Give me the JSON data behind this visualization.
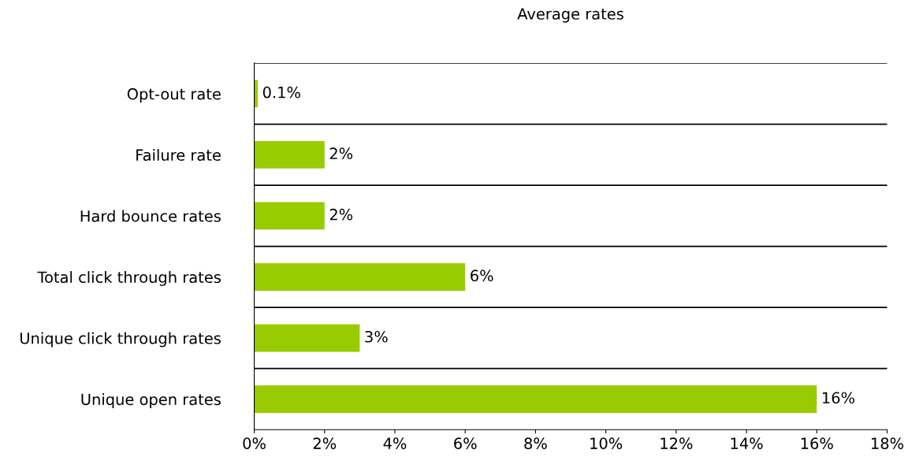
{
  "chart_data": {
    "type": "bar",
    "orientation": "horizontal",
    "title": "Average rates",
    "categories": [
      "Opt-out rate",
      "Failure rate",
      "Hard bounce rates",
      "Total click through rates",
      "Unique click through rates",
      "Unique open rates"
    ],
    "values": [
      0.1,
      2,
      2,
      6,
      3,
      16
    ],
    "value_labels": [
      "0.1%",
      "2%",
      "2%",
      "6%",
      "3%",
      "16%"
    ],
    "color": "#99cc00",
    "xlim": [
      0,
      18
    ],
    "xticks": [
      {
        "value": 0,
        "label": "0%"
      },
      {
        "value": 2,
        "label": "2%"
      },
      {
        "value": 4,
        "label": "4%"
      },
      {
        "value": 6,
        "label": "6%"
      },
      {
        "value": 8,
        "label": "8%"
      },
      {
        "value": 10,
        "label": "10%"
      },
      {
        "value": 12,
        "label": "12%"
      },
      {
        "value": 14,
        "label": "14%"
      },
      {
        "value": 16,
        "label": "16%"
      },
      {
        "value": 18,
        "label": "18%"
      }
    ],
    "grid": "y",
    "legend": false
  }
}
